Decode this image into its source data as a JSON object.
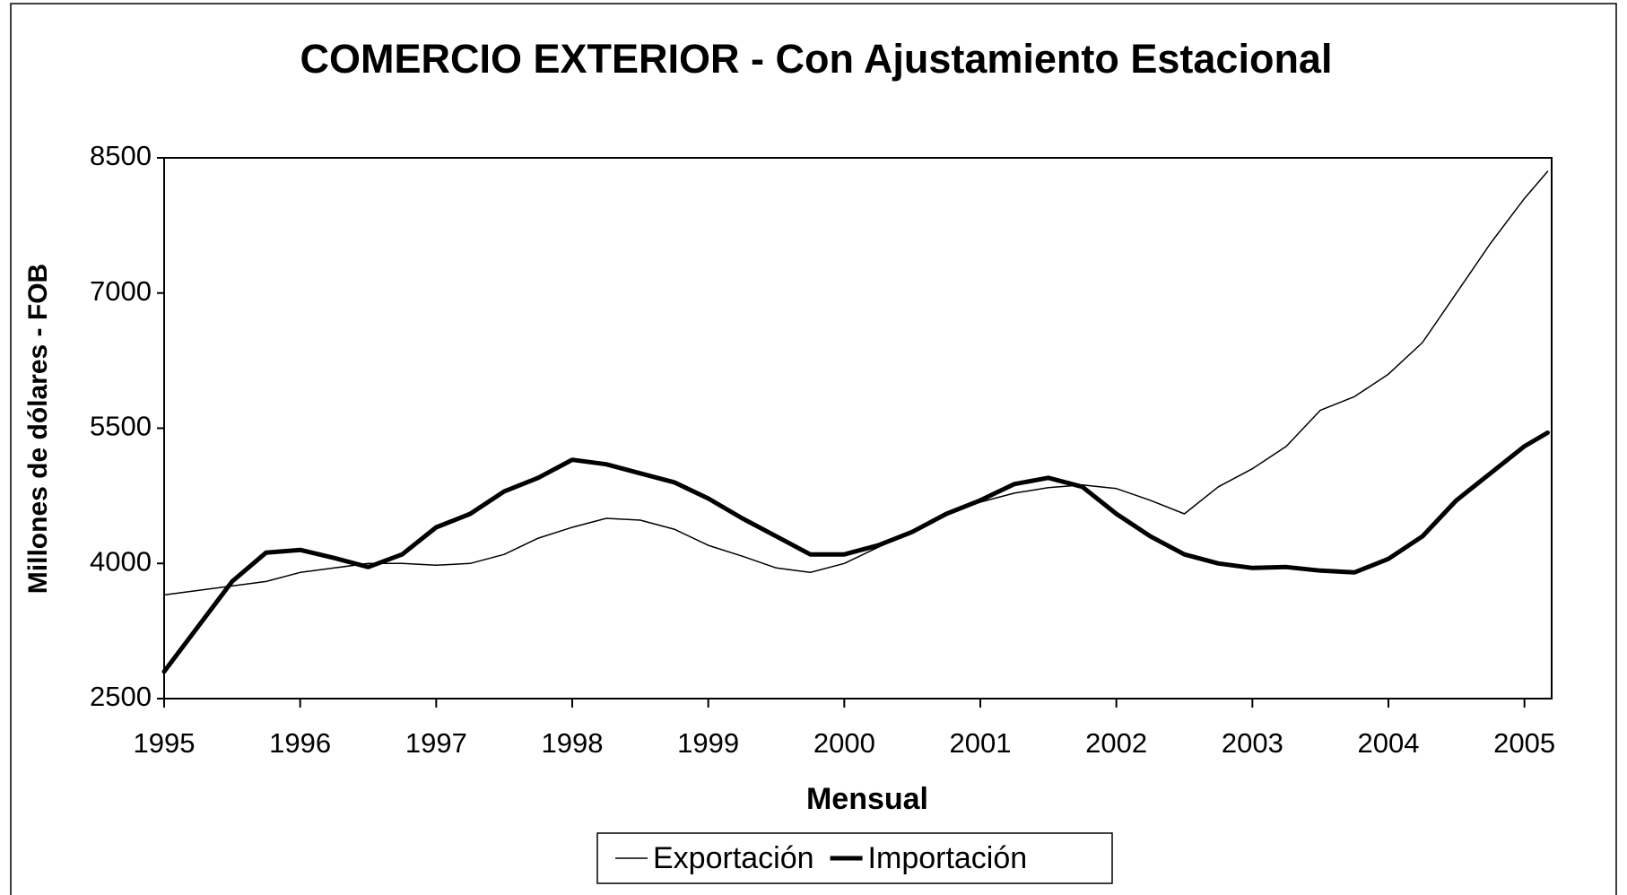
{
  "chart_data": {
    "type": "line",
    "title": "COMERCIO EXTERIOR - Con Ajustamiento Estacional",
    "x_label": "Mensual",
    "y_label": "Millones de dólares - FOB",
    "x": [
      1995,
      1995.25,
      1995.5,
      1995.75,
      1996,
      1996.25,
      1996.5,
      1996.75,
      1997,
      1997.25,
      1997.5,
      1997.75,
      1998,
      1998.25,
      1998.5,
      1998.75,
      1999,
      1999.25,
      1999.5,
      1999.75,
      2000,
      2000.25,
      2000.5,
      2000.75,
      2001,
      2001.25,
      2001.5,
      2001.75,
      2002,
      2002.25,
      2002.5,
      2002.75,
      2003,
      2003.25,
      2003.5,
      2003.75,
      2004,
      2004.25,
      2004.5,
      2004.75,
      2005,
      2005.17
    ],
    "series": [
      {
        "name": "Exportación",
        "color": "#000000",
        "width": 1.5,
        "values": [
          3650,
          3700,
          3750,
          3800,
          3900,
          3950,
          4000,
          4000,
          3980,
          4000,
          4100,
          4280,
          4400,
          4500,
          4480,
          4380,
          4200,
          4080,
          3950,
          3900,
          4000,
          4180,
          4350,
          4550,
          4680,
          4780,
          4840,
          4870,
          4830,
          4700,
          4550,
          4850,
          5050,
          5300,
          5700,
          5850,
          6100,
          6450,
          7000,
          7550,
          8050,
          8350
        ]
      },
      {
        "name": "Importación",
        "color": "#000000",
        "width": 5,
        "values": [
          2800,
          3300,
          3800,
          4120,
          4150,
          4060,
          3960,
          4100,
          4400,
          4550,
          4800,
          4950,
          5150,
          5100,
          5000,
          4900,
          4720,
          4500,
          4300,
          4100,
          4100,
          4200,
          4350,
          4550,
          4700,
          4880,
          4950,
          4850,
          4550,
          4300,
          4100,
          4000,
          3950,
          3960,
          3920,
          3900,
          4050,
          4300,
          4700,
          5000,
          5300,
          5450
        ]
      }
    ],
    "xlim": [
      1995,
      2005.2
    ],
    "xticks": [
      1995,
      1996,
      1997,
      1998,
      1999,
      2000,
      2001,
      2002,
      2003,
      2004,
      2005
    ],
    "ylim": [
      2500,
      8500
    ],
    "yticks": [
      2500,
      4000,
      5500,
      7000,
      8500
    ],
    "grid": false
  }
}
